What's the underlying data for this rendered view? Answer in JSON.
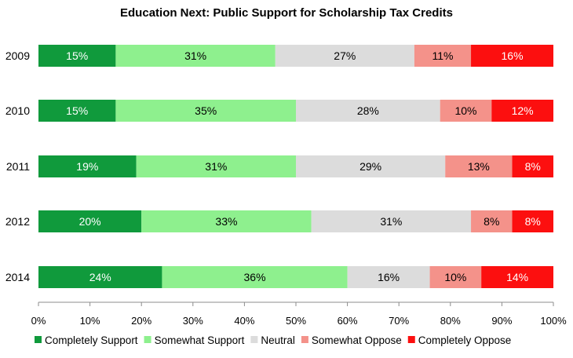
{
  "chart_data": {
    "type": "bar",
    "orientation": "horizontal",
    "stacked": true,
    "title": "Education Next: Public Support for Scholarship Tax Credits",
    "categories": [
      "2009",
      "2010",
      "2011",
      "2012",
      "2014"
    ],
    "xlim": [
      0,
      100
    ],
    "x_ticks": [
      "0%",
      "10%",
      "20%",
      "30%",
      "40%",
      "50%",
      "60%",
      "70%",
      "80%",
      "90%",
      "100%"
    ],
    "grid": false,
    "legend_position": "bottom",
    "series": [
      {
        "name": "Completely Support",
        "color": "#109a3c",
        "label_color": "#ffffff",
        "values": [
          15,
          15,
          19,
          20,
          24
        ],
        "labels": [
          "15%",
          "15%",
          "19%",
          "20%",
          "24%"
        ]
      },
      {
        "name": "Somewhat Support",
        "color": "#8ef08e",
        "label_color": "#000000",
        "values": [
          31,
          35,
          31,
          33,
          36
        ],
        "labels": [
          "31%",
          "35%",
          "31%",
          "33%",
          "36%"
        ]
      },
      {
        "name": "Neutral",
        "color": "#dcdcdc",
        "label_color": "#000000",
        "values": [
          27,
          28,
          29,
          31,
          16
        ],
        "labels": [
          "27%",
          "28%",
          "29%",
          "31%",
          "16%"
        ]
      },
      {
        "name": "Somewhat Oppose",
        "color": "#f4928a",
        "label_color": "#000000",
        "values": [
          11,
          10,
          13,
          8,
          10
        ],
        "labels": [
          "11%",
          "10%",
          "13%",
          "8%",
          "10%"
        ]
      },
      {
        "name": "Completely Oppose",
        "color": "#fc0f0f",
        "label_color": "#ffffff",
        "values": [
          16,
          12,
          8,
          8,
          14
        ],
        "labels": [
          "16%",
          "12%",
          "8%",
          "8%",
          "14%"
        ]
      }
    ]
  }
}
